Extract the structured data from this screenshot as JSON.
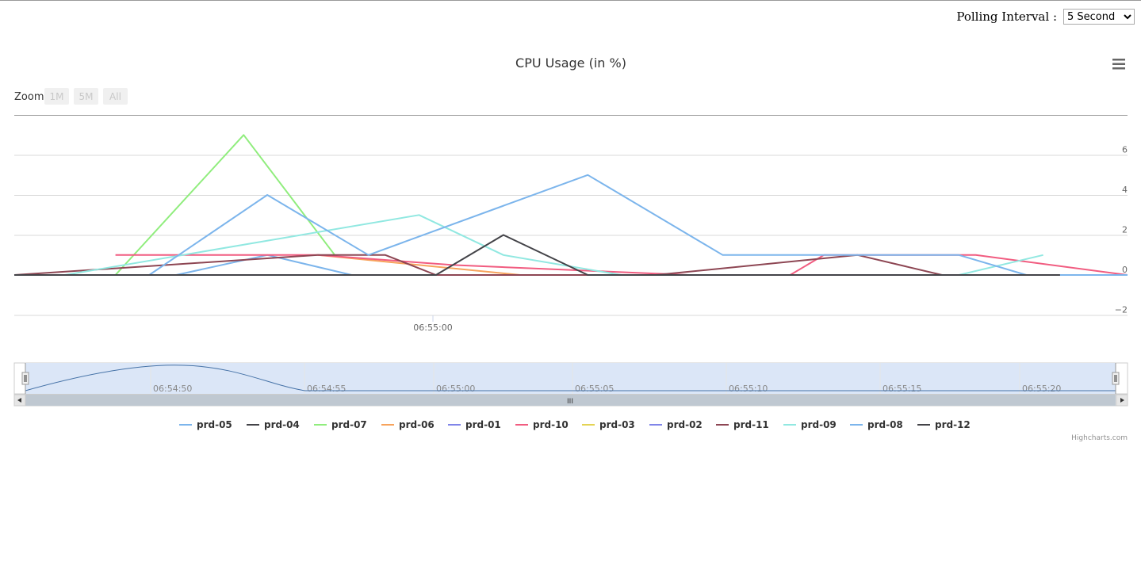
{
  "controls": {
    "polling_label": "Polling Interval :",
    "polling_selected": "5 Second",
    "polling_options": [
      "5 Second"
    ]
  },
  "chart_data": {
    "type": "line",
    "title": "CPU Usage (in %)",
    "menu_icon": "hamburger-menu-icon",
    "zoom": {
      "label": "Zoom",
      "buttons": [
        "1M",
        "5M",
        "All"
      ]
    },
    "y_axis": {
      "ticks": [
        6,
        4,
        2,
        0,
        -2
      ],
      "ylim": [
        -2,
        8
      ],
      "position": "right"
    },
    "x_axis": {
      "tick_labels": [
        "06:55:00"
      ],
      "time_range_seconds": [
        -13,
        20
      ]
    },
    "navigator": {
      "tick_labels": [
        "06:54:50",
        "06:54:55",
        "06:55:00",
        "06:55:05",
        "06:55:10",
        "06:55:15",
        "06:55:20"
      ],
      "scrollbar_grip": "III"
    },
    "credits": "Highcharts.com",
    "legend_placement": "bottom-center",
    "series": [
      {
        "name": "prd-05",
        "color": "#7cb5ec",
        "points": [
          [
            -10.2,
            0
          ],
          [
            -8.2,
            0
          ],
          [
            -5.5,
            1
          ],
          [
            -3,
            0
          ],
          [
            1,
            0
          ],
          [
            16,
            0
          ],
          [
            20,
            0
          ]
        ]
      },
      {
        "name": "prd-04",
        "color": "#434348",
        "points": [
          [
            -13,
            0
          ],
          [
            2,
            0
          ],
          [
            18,
            0
          ]
        ]
      },
      {
        "name": "prd-07",
        "color": "#90ed7d",
        "points": [
          [
            -10,
            0
          ],
          [
            -6.2,
            7
          ],
          [
            -3.5,
            1
          ]
        ]
      },
      {
        "name": "prd-06",
        "color": "#f7a35c",
        "points": [
          [
            -4,
            1
          ],
          [
            2,
            0
          ],
          [
            14,
            0
          ]
        ]
      },
      {
        "name": "prd-01",
        "color": "#8085e9",
        "points": [
          [
            -13,
            0
          ],
          [
            5,
            0
          ],
          [
            20,
            0
          ]
        ]
      },
      {
        "name": "prd-10",
        "color": "#f15c80",
        "points": [
          [
            -10,
            1
          ],
          [
            -4,
            1
          ],
          [
            0,
            0.5
          ],
          [
            7,
            0
          ],
          [
            10,
            0
          ],
          [
            11,
            1
          ],
          [
            15.5,
            1
          ],
          [
            20,
            0
          ]
        ]
      },
      {
        "name": "prd-03",
        "color": "#e4d354",
        "points": [
          [
            -13,
            0
          ],
          [
            20,
            0
          ]
        ]
      },
      {
        "name": "prd-02",
        "color": "#8085e9",
        "points": [
          [
            -12,
            0
          ],
          [
            19,
            0
          ]
        ]
      },
      {
        "name": "prd-11",
        "color": "#8d4653",
        "points": [
          [
            -13,
            0
          ],
          [
            -4,
            1
          ],
          [
            -2,
            1
          ],
          [
            -0.5,
            0
          ],
          [
            6,
            0
          ],
          [
            12,
            1
          ],
          [
            14.5,
            0
          ],
          [
            18,
            0
          ]
        ]
      },
      {
        "name": "prd-09",
        "color": "#91e8e1",
        "points": [
          [
            -11.5,
            0
          ],
          [
            -1,
            3
          ],
          [
            1.5,
            1
          ],
          [
            5,
            0
          ],
          [
            15,
            0
          ],
          [
            17.5,
            1
          ]
        ]
      },
      {
        "name": "prd-08",
        "color": "#7cb5ec",
        "points": [
          [
            -9,
            0
          ],
          [
            -5.5,
            4
          ],
          [
            -2.5,
            1
          ],
          [
            4,
            5
          ],
          [
            8,
            1
          ],
          [
            15,
            1
          ],
          [
            17,
            0
          ],
          [
            20,
            0
          ]
        ]
      },
      {
        "name": "prd-12",
        "color": "#434348",
        "points": [
          [
            -13,
            0
          ],
          [
            -0.5,
            0
          ],
          [
            1.5,
            2
          ],
          [
            4,
            0
          ],
          [
            18,
            0
          ]
        ]
      }
    ]
  }
}
